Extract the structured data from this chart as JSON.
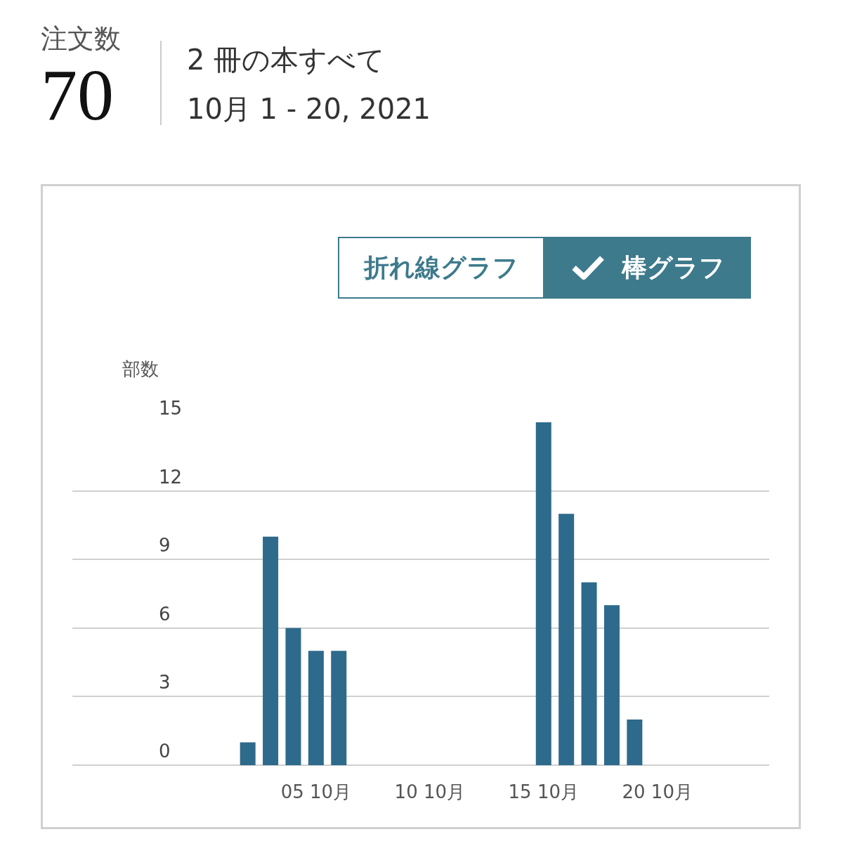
{
  "chart_data": {
    "type": "bar",
    "title": "2 冊の本すべて",
    "subtitle": "10月 1 - 20, 2021",
    "annotations": [
      "注文数",
      "70",
      "折れ線グラフ",
      "棒グラフ",
      "部数"
    ],
    "x": [
      "2021-10-01",
      "2021-10-02",
      "2021-10-03",
      "2021-10-04",
      "2021-10-05",
      "2021-10-06",
      "2021-10-07",
      "2021-10-08",
      "2021-10-09",
      "2021-10-10",
      "2021-10-11",
      "2021-10-12",
      "2021-10-13",
      "2021-10-14",
      "2021-10-15",
      "2021-10-16",
      "2021-10-17",
      "2021-10-18",
      "2021-10-19",
      "2021-10-20"
    ],
    "values": [
      0,
      1,
      10,
      6,
      5,
      5,
      0,
      0,
      0,
      0,
      0,
      0,
      0,
      0,
      15,
      11,
      8,
      7,
      2,
      0
    ],
    "color": "#2e6a8c",
    "xlim": [
      "2021-09-24T07:00",
      "2021-10-24T22:00"
    ],
    "xticks": [
      {
        "value": "2021-10-05",
        "label": "05 10月"
      },
      {
        "value": "2021-10-10",
        "label": "10 10月"
      },
      {
        "value": "2021-10-15",
        "label": "15 10月"
      },
      {
        "value": "2021-10-20",
        "label": "20 10月"
      }
    ],
    "ylim": [
      0,
      15
    ],
    "yticks": [
      0,
      3,
      6,
      9,
      12,
      15
    ],
    "grid": "y",
    "legend": false
  }
}
